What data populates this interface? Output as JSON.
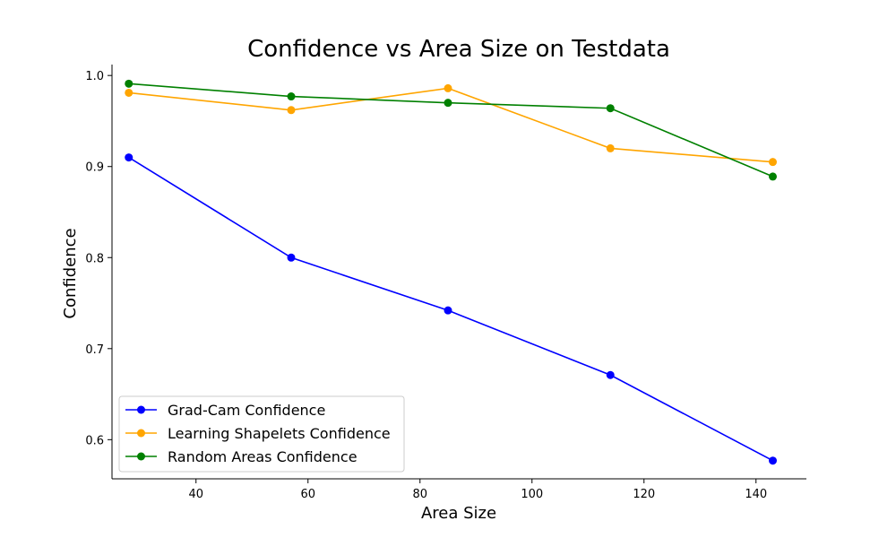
{
  "chart_data": {
    "type": "line",
    "title": "Confidence vs Area Size on Testdata",
    "xlabel": "Area Size",
    "ylabel": "Confidence",
    "x": [
      28,
      57,
      85,
      114,
      143
    ],
    "xlim": [
      25,
      149
    ],
    "ylim": [
      0.557,
      1.012
    ],
    "xticks": [
      40,
      60,
      80,
      100,
      120,
      140
    ],
    "yticks": [
      0.6,
      0.7,
      0.8,
      0.9,
      1.0
    ],
    "xtick_labels": [
      "40",
      "60",
      "80",
      "100",
      "120",
      "140"
    ],
    "ytick_labels": [
      "0.6",
      "0.7",
      "0.8",
      "0.9",
      "1.0"
    ],
    "grid": false,
    "legend_position": "lower-left",
    "series": [
      {
        "name": "Grad-Cam Confidence",
        "color": "#0000ff",
        "values": [
          0.91,
          0.8,
          0.742,
          0.671,
          0.577
        ]
      },
      {
        "name": "Learning Shapelets Confidence",
        "color": "#ffa500",
        "values": [
          0.981,
          0.962,
          0.986,
          0.92,
          0.905
        ]
      },
      {
        "name": "Random Areas Confidence",
        "color": "#008000",
        "values": [
          0.991,
          0.977,
          0.97,
          0.964,
          0.889
        ]
      }
    ]
  }
}
